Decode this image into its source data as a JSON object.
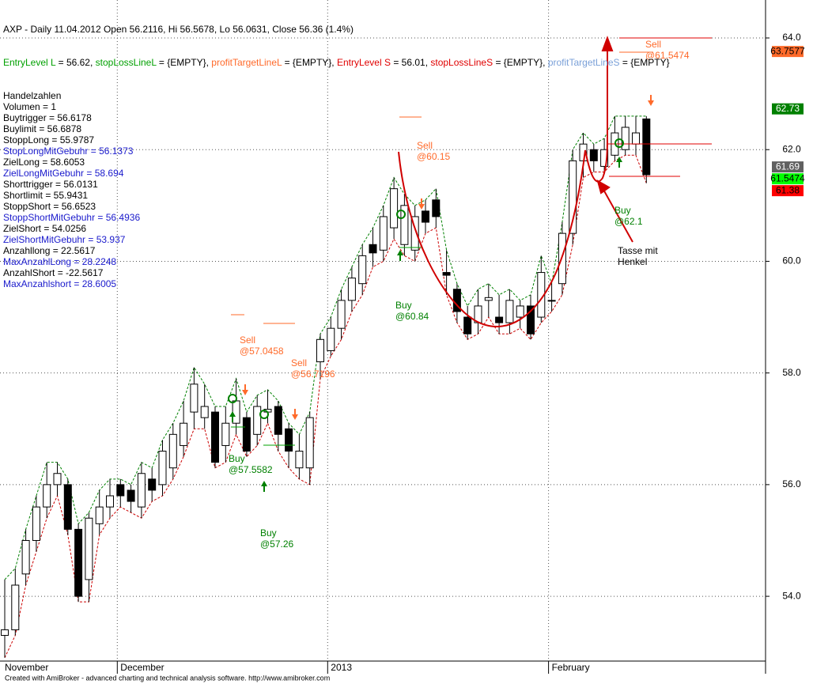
{
  "chart_data": {
    "type": "candlestick",
    "title": "AXP - Daily 11.04.2012 Open 56.2116, Hi 56.5678, Lo 56.0631, Close 56.36 (1.4%)",
    "title_segments": [
      {
        "text": "EntryLevel L",
        "color": "#00a000"
      },
      {
        "text": " = 56.62, ",
        "color": "#000000"
      },
      {
        "text": "stopLossLineL",
        "color": "#00a000"
      },
      {
        "text": " = {EMPTY}, ",
        "color": "#000000"
      },
      {
        "text": "profitTargetLineL",
        "color": "#ff6a2a"
      },
      {
        "text": " = {EMPTY}, ",
        "color": "#000000"
      },
      {
        "text": "EntryLevel S",
        "color": "#e00000"
      },
      {
        "text": " = 56.01, ",
        "color": "#000000"
      },
      {
        "text": "stopLossLineS",
        "color": "#e00000"
      },
      {
        "text": " = {EMPTY}, ",
        "color": "#000000"
      },
      {
        "text": "profitTargetLineS",
        "color": "#7aa0d8"
      },
      {
        "text": " = {EMPTY}",
        "color": "#000000"
      }
    ],
    "indicator_lines": [
      {
        "text": "Handelzahlen",
        "color": "#000000"
      },
      {
        "text": "Volumen = 1",
        "color": "#000000"
      },
      {
        "text": "Buytrigger = 56.6178",
        "color": "#000000"
      },
      {
        "text": "Buylimit = 56.6878",
        "color": "#000000"
      },
      {
        "text": "StoppLong = 55.9787",
        "color": "#000000"
      },
      {
        "text": "StopLongMitGebuhr = 56.1373",
        "color": "#1a1acc"
      },
      {
        "text": "ZielLong = 58.6053",
        "color": "#000000"
      },
      {
        "text": "ZielLongMitGebuhr = 58.694",
        "color": "#1a1acc"
      },
      {
        "text": "Shorttrigger = 56.0131",
        "color": "#000000"
      },
      {
        "text": "Shortlimit = 55.9431",
        "color": "#000000"
      },
      {
        "text": "StoppShort = 56.6523",
        "color": "#000000"
      },
      {
        "text": "StoppShortMitGebuhr = 56.4936",
        "color": "#1a1acc"
      },
      {
        "text": "ZielShort = 54.0256",
        "color": "#000000"
      },
      {
        "text": "ZielShortMitGebuhr = 53.937",
        "color": "#1a1acc"
      },
      {
        "text": "Anzahllong = 22.5617",
        "color": "#000000"
      },
      {
        "text": "MaxAnzahlLong = 28.2248",
        "color": "#1a1acc"
      },
      {
        "text": "AnzahlShort = -22.5617",
        "color": "#000000"
      },
      {
        "text": "MaxAnzahlshort = 28.6005",
        "color": "#1a1acc"
      }
    ],
    "categories": [
      "November",
      null,
      null,
      null,
      null,
      null,
      null,
      null,
      null,
      null,
      null,
      "December",
      null,
      null,
      null,
      null,
      null,
      null,
      null,
      null,
      null,
      null,
      null,
      null,
      null,
      null,
      null,
      null,
      null,
      null,
      null,
      "2013",
      null,
      null,
      null,
      null,
      null,
      null,
      null,
      null,
      null,
      null,
      null,
      null,
      null,
      null,
      null,
      null,
      null,
      null,
      null,
      null,
      "February",
      null,
      null,
      null,
      null,
      null,
      null,
      null,
      null,
      null
    ],
    "open": [
      53.3,
      53.4,
      54.4,
      55.0,
      55.6,
      56.0,
      56.0,
      55.2,
      54.3,
      55.3,
      55.6,
      56.0,
      55.9,
      55.6,
      56.1,
      56.0,
      56.3,
      56.7,
      57.3,
      57.2,
      57.3,
      56.7,
      57.1,
      57.2,
      56.9,
      57.3,
      57.4,
      57.0,
      56.3,
      56.3,
      58.2,
      58.4,
      58.8,
      59.3,
      59.6,
      60.3,
      60.2,
      60.6,
      60.3,
      60.2,
      60.9,
      61.1,
      59.8,
      59.5,
      59.0,
      58.9,
      59.3,
      59.0,
      58.9,
      59.0,
      59.2,
      59.0,
      59.3,
      59.6,
      60.5,
      61.8,
      62.0,
      61.7,
      61.9,
      62.0,
      62.1,
      62.55
    ],
    "high": [
      54.3,
      54.5,
      55.2,
      55.8,
      56.4,
      56.4,
      56.1,
      55.3,
      55.5,
      55.9,
      56.1,
      56.1,
      56.0,
      56.4,
      56.3,
      56.8,
      57.1,
      57.5,
      58.1,
      57.8,
      57.4,
      57.4,
      57.9,
      57.3,
      57.6,
      57.7,
      57.5,
      57.1,
      56.9,
      57.3,
      58.7,
      59.0,
      59.5,
      59.9,
      60.3,
      60.6,
      61.0,
      61.5,
      61.2,
      61.0,
      61.1,
      61.3,
      60.2,
      59.6,
      59.2,
      59.5,
      59.6,
      59.4,
      59.5,
      59.3,
      59.4,
      60.1,
      59.6,
      60.7,
      62.0,
      62.3,
      62.1,
      62.2,
      62.6,
      62.6,
      62.6,
      62.6
    ],
    "low": [
      52.9,
      53.3,
      54.2,
      54.8,
      55.4,
      55.8,
      55.1,
      53.9,
      53.9,
      55.1,
      55.4,
      55.6,
      55.5,
      55.4,
      55.7,
      55.8,
      56.1,
      56.5,
      57.0,
      57.0,
      56.3,
      56.4,
      56.9,
      56.5,
      56.7,
      57.1,
      56.6,
      56.3,
      56.1,
      56.0,
      57.9,
      58.3,
      58.6,
      59.1,
      59.4,
      59.9,
      60.0,
      60.4,
      60.1,
      60.0,
      60.5,
      60.6,
      59.4,
      58.9,
      58.6,
      58.7,
      59.0,
      58.7,
      58.7,
      58.8,
      58.6,
      58.9,
      59.1,
      59.4,
      60.3,
      61.5,
      61.6,
      61.6,
      61.8,
      61.9,
      61.9,
      61.4
    ],
    "close": [
      53.4,
      54.2,
      55.0,
      55.6,
      56.0,
      56.2,
      55.2,
      54.0,
      55.4,
      55.6,
      55.8,
      55.8,
      55.7,
      56.2,
      55.9,
      56.6,
      56.9,
      57.1,
      57.8,
      57.4,
      56.4,
      57.1,
      57.5,
      56.6,
      57.4,
      57.35,
      56.9,
      56.6,
      56.6,
      57.2,
      58.6,
      58.8,
      59.3,
      59.7,
      60.1,
      60.15,
      60.8,
      61.3,
      61.0,
      60.8,
      60.7,
      60.8,
      59.75,
      59.1,
      58.7,
      59.2,
      59.35,
      58.9,
      59.3,
      59.2,
      58.7,
      59.8,
      59.3,
      60.5,
      61.8,
      62.1,
      61.8,
      62.0,
      62.3,
      62.4,
      62.3,
      61.55
    ],
    "up_color": "#ffffff",
    "down_color": "#000000",
    "upper_band_color": "#008000",
    "lower_band_color": "#cc0000",
    "ylim": [
      52.84,
      64.68
    ],
    "yticks": [
      {
        "value": 54,
        "label": "54.0"
      },
      {
        "value": 56,
        "label": "56.0"
      },
      {
        "value": 58,
        "label": "58.0"
      },
      {
        "value": 60,
        "label": "60.0"
      },
      {
        "value": 62,
        "label": "62.0"
      },
      {
        "value": 64,
        "label": "64.0"
      }
    ],
    "grid": true,
    "price_labels": [
      {
        "value": 63.7577,
        "color": "#ff6a2a",
        "text_color": "#000000"
      },
      {
        "value": 62.73,
        "color": "#008000",
        "text_color": "#ffffff"
      },
      {
        "value": 61.69,
        "color": "#606060",
        "text_color": "#ffffff"
      },
      {
        "value": 61.5474,
        "color": "#00ff00",
        "text_color": "#000000"
      },
      {
        "value": 61.38,
        "color": "#ff0000",
        "text_color": "#000000"
      }
    ],
    "annotations": [
      {
        "lines": [
          "Sell",
          "@57.0458"
        ],
        "color": "#ff6a2a"
      },
      {
        "lines": [
          "Sell",
          "@56.7196"
        ],
        "color": "#ff6a2a"
      },
      {
        "lines": [
          "Buy",
          "@57.5582"
        ],
        "color": "#008000"
      },
      {
        "lines": [
          "Buy",
          "@57.26"
        ],
        "color": "#008000"
      },
      {
        "lines": [
          "Sell",
          "@60.15"
        ],
        "color": "#ff6a2a"
      },
      {
        "lines": [
          "Buy",
          "@60.84"
        ],
        "color": "#008000"
      },
      {
        "lines": [
          "Buy",
          "@62.1"
        ],
        "color": "#008000"
      },
      {
        "lines": [
          "Sell",
          "@61.5474"
        ],
        "color": "#ff6a2a"
      },
      {
        "lines": [
          "Tasse mit",
          "Henkel"
        ],
        "color": "#000000"
      }
    ],
    "footer": "Created with AmiBroker - advanced charting and technical analysis software. http://www.amibroker.com"
  }
}
